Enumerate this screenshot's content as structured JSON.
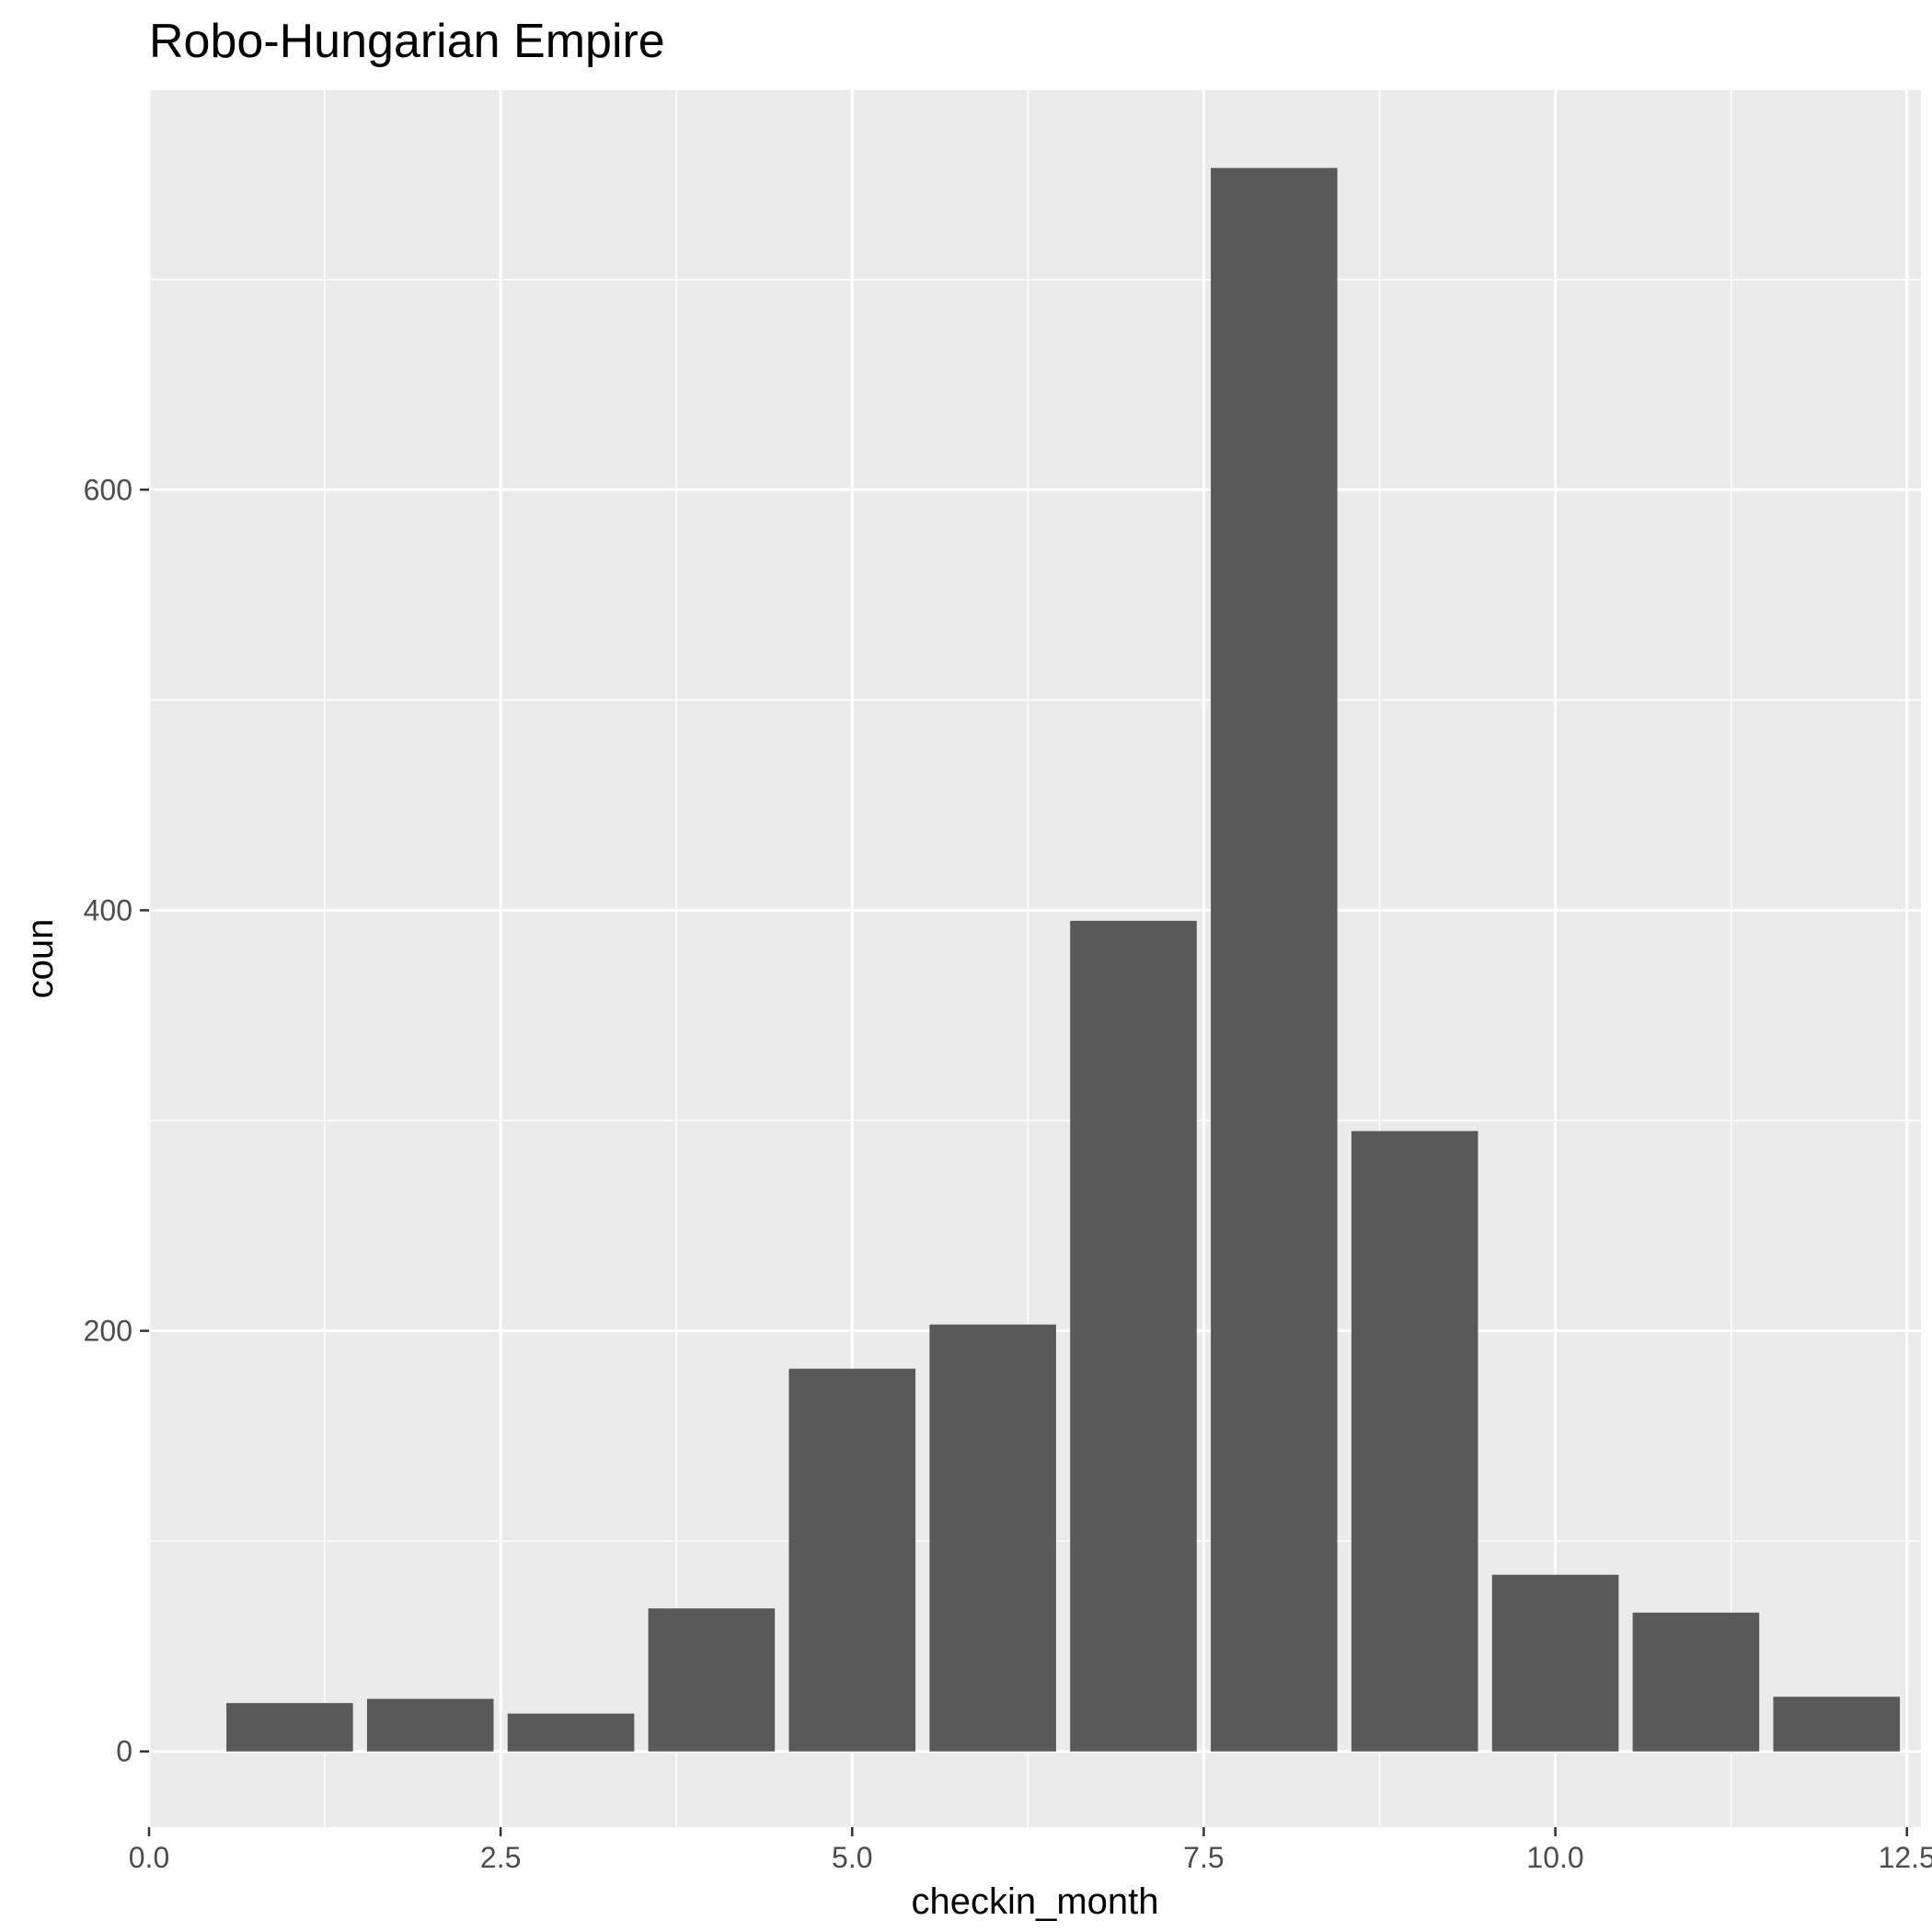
{
  "chart_data": {
    "type": "bar",
    "title": "Robo-Hungarian Empire",
    "xlabel": "checkin_month",
    "ylabel": "coun",
    "x": [
      1,
      2,
      3,
      4,
      5,
      6,
      7,
      8,
      9,
      10,
      11,
      12
    ],
    "values": [
      23,
      25,
      18,
      68,
      182,
      203,
      395,
      753,
      295,
      84,
      66,
      26
    ],
    "xlim": [
      0,
      12.6
    ],
    "ylim": [
      -36,
      790
    ],
    "x_ticks": [
      0,
      2.5,
      5,
      7.5,
      10,
      12.5
    ],
    "x_tick_labels": [
      "0.0",
      "2.5",
      "5.0",
      "7.5",
      "10.0",
      "12.5"
    ],
    "y_ticks": [
      0,
      200,
      400,
      600
    ],
    "y_tick_labels": [
      "0",
      "200",
      "400",
      "600"
    ],
    "bar_width": 0.9,
    "grid": true,
    "colors": {
      "panel": "#ebebeb",
      "grid": "#ffffff",
      "bar": "#595959",
      "tick": "#333333"
    }
  }
}
